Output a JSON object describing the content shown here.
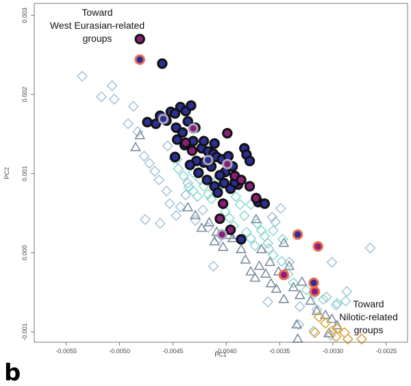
{
  "panel_label": "b",
  "annotations": {
    "top_left": [
      "Toward",
      "West Eurasian-related",
      "groups"
    ],
    "bottom_right": [
      "Toward",
      "Nilotic-related",
      "groups"
    ]
  },
  "colors": {
    "light_diamond": "#a8c4d8",
    "cyan_diamond": "#8fd9d2",
    "gold_diamond": "#d9a640",
    "triangle": "#7c8c9c",
    "navy_fill": "#2c2f93",
    "purple_fill": "#8a1f79",
    "black_ring": "#111111",
    "red_ring": "#ee6a52",
    "grey_ring": "#a8a8bc"
  },
  "chart_data": {
    "type": "scatter",
    "xlabel": "PC1",
    "ylabel": "PC2",
    "xlim": [
      -0.0058,
      -0.0023
    ],
    "ylim": [
      -0.00113,
      0.00315
    ],
    "xticks": [
      -0.0055,
      -0.005,
      -0.0045,
      -0.004,
      -0.0035,
      -0.003,
      -0.0025
    ],
    "xtick_labels": [
      "-0.0055",
      "-0.0050",
      "-0.0045",
      "-0.0040",
      "-0.0035",
      "-0.0030",
      "-0.0025"
    ],
    "yticks": [
      -0.001,
      0.0,
      0.001,
      0.002,
      0.003
    ],
    "ytick_labels": [
      "-0.001",
      "0.000",
      "0.001",
      "0.002",
      "0.003"
    ],
    "grid": false,
    "series": [
      {
        "marker": "diamond",
        "color": "light_diamond",
        "points": [
          [
            -0.00535,
            0.00223
          ],
          [
            -0.00517,
            0.00197
          ],
          [
            -0.00507,
            0.00211
          ],
          [
            -0.00505,
            0.00194
          ],
          [
            -0.00487,
            0.00185
          ],
          [
            -0.00483,
            0.00153
          ],
          [
            -0.00477,
            0.00122
          ],
          [
            -0.00472,
            0.00113
          ],
          [
            -0.00467,
            0.00103
          ],
          [
            -0.00463,
            0.00092
          ],
          [
            -0.00456,
            0.00078
          ],
          [
            -0.00453,
            0.00062
          ],
          [
            -0.00447,
            0.00047
          ],
          [
            -0.00443,
            0.00058
          ],
          [
            -0.00438,
            0.00073
          ],
          [
            -0.00436,
            0.00088
          ],
          [
            -0.00429,
            0.00041
          ],
          [
            -0.00422,
            0.00054
          ],
          [
            -0.00417,
            0.00032
          ],
          [
            -0.00462,
            0.00037
          ],
          [
            -0.00476,
            0.00042
          ],
          [
            -0.00407,
            0.00018
          ],
          [
            -0.00412,
            -0.00017
          ],
          [
            -0.00361,
            -0.00062
          ],
          [
            -0.00357,
            0.00045
          ],
          [
            -0.00349,
            0.00056
          ],
          [
            -0.00341,
            -0.00012
          ],
          [
            -0.00331,
            -0.00068
          ],
          [
            -0.00315,
            -0.00072
          ],
          [
            -0.00306,
            -0.00056
          ],
          [
            -0.00297,
            -0.00066
          ],
          [
            -0.00287,
            -0.00049
          ],
          [
            -0.00265,
            6e-05
          ],
          [
            -0.00301,
            -0.00012
          ],
          [
            -0.00354,
            0.00039
          ],
          [
            -0.00412,
            0.00087
          ],
          [
            -0.00492,
            0.00163
          ],
          [
            -0.00455,
            0.00135
          ],
          [
            -0.00446,
            0.00118
          ],
          [
            -0.0036,
            5e-05
          ],
          [
            -0.00332,
            -0.00091
          ],
          [
            -0.00318,
            -0.00099
          ],
          [
            -0.00302,
            -0.00104
          ]
        ]
      },
      {
        "marker": "diamond",
        "color": "cyan_diamond",
        "points": [
          [
            -0.00445,
            0.00106
          ],
          [
            -0.0044,
            0.00097
          ],
          [
            -0.00435,
            0.00083
          ],
          [
            -0.00431,
            0.00078
          ],
          [
            -0.00427,
            0.00071
          ],
          [
            -0.00425,
            0.00093
          ],
          [
            -0.00421,
            0.00084
          ],
          [
            -0.00417,
            0.00074
          ],
          [
            -0.00414,
            0.00068
          ],
          [
            -0.00411,
            0.0009
          ],
          [
            -0.00408,
            0.0008
          ],
          [
            -0.00403,
            0.00061
          ],
          [
            -0.00401,
            0.00052
          ],
          [
            -0.00397,
            0.00044
          ],
          [
            -0.00393,
            0.00034
          ],
          [
            -0.00391,
            0.00071
          ],
          [
            -0.00387,
            0.00061
          ],
          [
            -0.00383,
            0.00047
          ],
          [
            -0.00381,
            0.00026
          ],
          [
            -0.00377,
            0.00018
          ],
          [
            -0.00373,
            9e-05
          ],
          [
            -0.00371,
            0.00037
          ],
          [
            -0.00367,
            0.00028
          ],
          [
            -0.00364,
            0.00021
          ],
          [
            -0.00361,
            0.00012
          ],
          [
            -0.00356,
            -3e-05
          ],
          [
            -0.00348,
            -0.00011
          ],
          [
            -0.00342,
            -0.00027
          ],
          [
            -0.00337,
            -0.00038
          ],
          [
            -0.00325,
            -0.00047
          ],
          [
            -0.00318,
            -0.00052
          ],
          [
            -0.00309,
            -0.00059
          ],
          [
            -0.00296,
            -0.00064
          ],
          [
            -0.00288,
            -0.00061
          ],
          [
            -0.00449,
            0.00119
          ],
          [
            -0.00431,
            0.00101
          ],
          [
            -0.00396,
            0.00081
          ],
          [
            -0.00377,
            0.00061
          ],
          [
            -0.00356,
            0.00028
          ],
          [
            -0.00347,
            0.00017
          ]
        ]
      },
      {
        "marker": "triangle",
        "color": "triangle",
        "points": [
          [
            -0.00481,
            0.00148
          ],
          [
            -0.00485,
            0.00133
          ],
          [
            -0.00436,
            0.00057
          ],
          [
            -0.00429,
            0.00047
          ],
          [
            -0.00423,
            0.00031
          ],
          [
            -0.00416,
            0.00038
          ],
          [
            -0.00409,
            0.00026
          ],
          [
            -0.00411,
            0.00014
          ],
          [
            -0.00403,
            7e-05
          ],
          [
            -0.00397,
            0.00022
          ],
          [
            -0.00394,
            0.00018
          ],
          [
            -0.00386,
            4e-05
          ],
          [
            -0.00382,
            -9e-05
          ],
          [
            -0.00377,
            -0.00024
          ],
          [
            -0.00373,
            -0.00032
          ],
          [
            -0.00369,
            -0.00017
          ],
          [
            -0.00367,
            4e-05
          ],
          [
            -0.00363,
            -0.00027
          ],
          [
            -0.00358,
            -0.00039
          ],
          [
            -0.00353,
            -0.00046
          ],
          [
            -0.00359,
            -0.00012
          ],
          [
            -0.00351,
            -0.00024
          ],
          [
            -0.00346,
            0.00012
          ],
          [
            -0.00341,
            -0.00017
          ],
          [
            -0.00337,
            -0.00044
          ],
          [
            -0.00331,
            -0.00054
          ],
          [
            -0.00329,
            -0.00037
          ],
          [
            -0.00321,
            -0.00061
          ],
          [
            -0.00315,
            -0.00074
          ],
          [
            -0.00333,
            -0.00109
          ],
          [
            -0.00307,
            -0.00079
          ],
          [
            -0.00301,
            -0.00084
          ],
          [
            -0.00296,
            -0.00092
          ],
          [
            -0.00372,
            0.00042
          ],
          [
            -0.00346,
            -0.00059
          ],
          [
            -0.00334,
            -0.00091
          ],
          [
            -0.00304,
            -0.00102
          ]
        ]
      },
      {
        "marker": "diamond",
        "color": "gold_diamond",
        "points": [
          [
            -0.00313,
            -0.00081
          ],
          [
            -0.00307,
            -0.00089
          ],
          [
            -0.00301,
            -0.00099
          ],
          [
            -0.00297,
            -0.00106
          ],
          [
            -0.00289,
            -0.00101
          ],
          [
            -0.00286,
            -0.00109
          ],
          [
            -0.00273,
            -0.00109
          ],
          [
            -0.00317,
            -0.00101
          ],
          [
            -0.00296,
            -0.00096
          ]
        ]
      },
      {
        "marker": "circle",
        "fill": "navy_fill",
        "ring": "black_ring",
        "points": [
          [
            -0.0046,
            0.00239
          ],
          [
            -0.00474,
            0.00165
          ],
          [
            -0.00466,
            0.00163
          ],
          [
            -0.00462,
            0.00173
          ],
          [
            -0.00456,
            0.00167
          ],
          [
            -0.00452,
            0.00178
          ],
          [
            -0.00448,
            0.00176
          ],
          [
            -0.00443,
            0.00184
          ],
          [
            -0.00438,
            0.00179
          ],
          [
            -0.00433,
            0.00186
          ],
          [
            -0.00436,
            0.00166
          ],
          [
            -0.00429,
            0.00158
          ],
          [
            -0.00447,
            0.00158
          ],
          [
            -0.00441,
            0.00152
          ],
          [
            -0.00431,
            0.00141
          ],
          [
            -0.00439,
            0.00136
          ],
          [
            -0.00446,
            0.00143
          ],
          [
            -0.00423,
            0.00132
          ],
          [
            -0.00417,
            0.00128
          ],
          [
            -0.00412,
            0.00125
          ],
          [
            -0.00409,
            0.00121
          ],
          [
            -0.00404,
            0.00118
          ],
          [
            -0.00398,
            0.00122
          ],
          [
            -0.00394,
            0.00109
          ],
          [
            -0.00401,
            0.00102
          ],
          [
            -0.00406,
            0.00098
          ],
          [
            -0.00414,
            0.00109
          ],
          [
            -0.00421,
            0.00114
          ],
          [
            -0.00428,
            0.00116
          ],
          [
            -0.00434,
            0.00111
          ],
          [
            -0.00426,
            0.00101
          ],
          [
            -0.00418,
            0.00092
          ],
          [
            -0.00411,
            0.00084
          ],
          [
            -0.00402,
            0.00088
          ],
          [
            -0.00396,
            0.00081
          ],
          [
            -0.00389,
            0.00086
          ],
          [
            -0.00383,
            0.00132
          ],
          [
            -0.00381,
            0.00124
          ],
          [
            -0.00378,
            0.00116
          ],
          [
            -0.00392,
            0.00089
          ],
          [
            -0.00408,
            0.00076
          ],
          [
            -0.0037,
            0.00064
          ],
          [
            -0.00364,
            0.00062
          ],
          [
            -0.00386,
            0.00017
          ],
          [
            -0.00421,
            0.00141
          ],
          [
            -0.00411,
            0.00138
          ],
          [
            -0.00448,
            0.00121
          ]
        ]
      },
      {
        "marker": "circle",
        "fill": "purple_fill",
        "ring": "black_ring",
        "points": [
          [
            -0.00481,
            0.0027
          ],
          [
            -0.00438,
            0.00139
          ],
          [
            -0.00432,
            0.00129
          ],
          [
            -0.00416,
            0.00116
          ],
          [
            -0.00399,
            0.00151
          ],
          [
            -0.00392,
            0.00097
          ],
          [
            -0.00386,
            0.00092
          ],
          [
            -0.00378,
            0.00084
          ],
          [
            -0.00372,
            0.00069
          ],
          [
            -0.00403,
            0.00062
          ],
          [
            -0.00406,
            0.00043
          ],
          [
            -0.00396,
            0.00029
          ]
        ]
      },
      {
        "marker": "circle",
        "fill": "purple_fill",
        "ring": "grey_ring",
        "points": [
          [
            -0.00431,
            0.00157
          ],
          [
            -0.00399,
            0.00112
          ],
          [
            -0.00404,
            0.00023
          ]
        ]
      },
      {
        "marker": "circle",
        "fill": "navy_fill",
        "ring": "grey_ring",
        "points": [
          [
            -0.00459,
            0.00169
          ],
          [
            -0.00417,
            0.00117
          ]
        ]
      },
      {
        "marker": "circle",
        "fill": "navy_fill",
        "ring": "red_ring",
        "points": [
          [
            -0.00481,
            0.00244
          ],
          [
            -0.00333,
            0.00023
          ],
          [
            -0.00318,
            -0.00038
          ]
        ]
      },
      {
        "marker": "circle",
        "fill": "purple_fill",
        "ring": "red_ring",
        "points": [
          [
            -0.00314,
            8e-05
          ],
          [
            -0.00346,
            -0.00028
          ],
          [
            -0.00317,
            -0.00049
          ]
        ]
      }
    ]
  }
}
